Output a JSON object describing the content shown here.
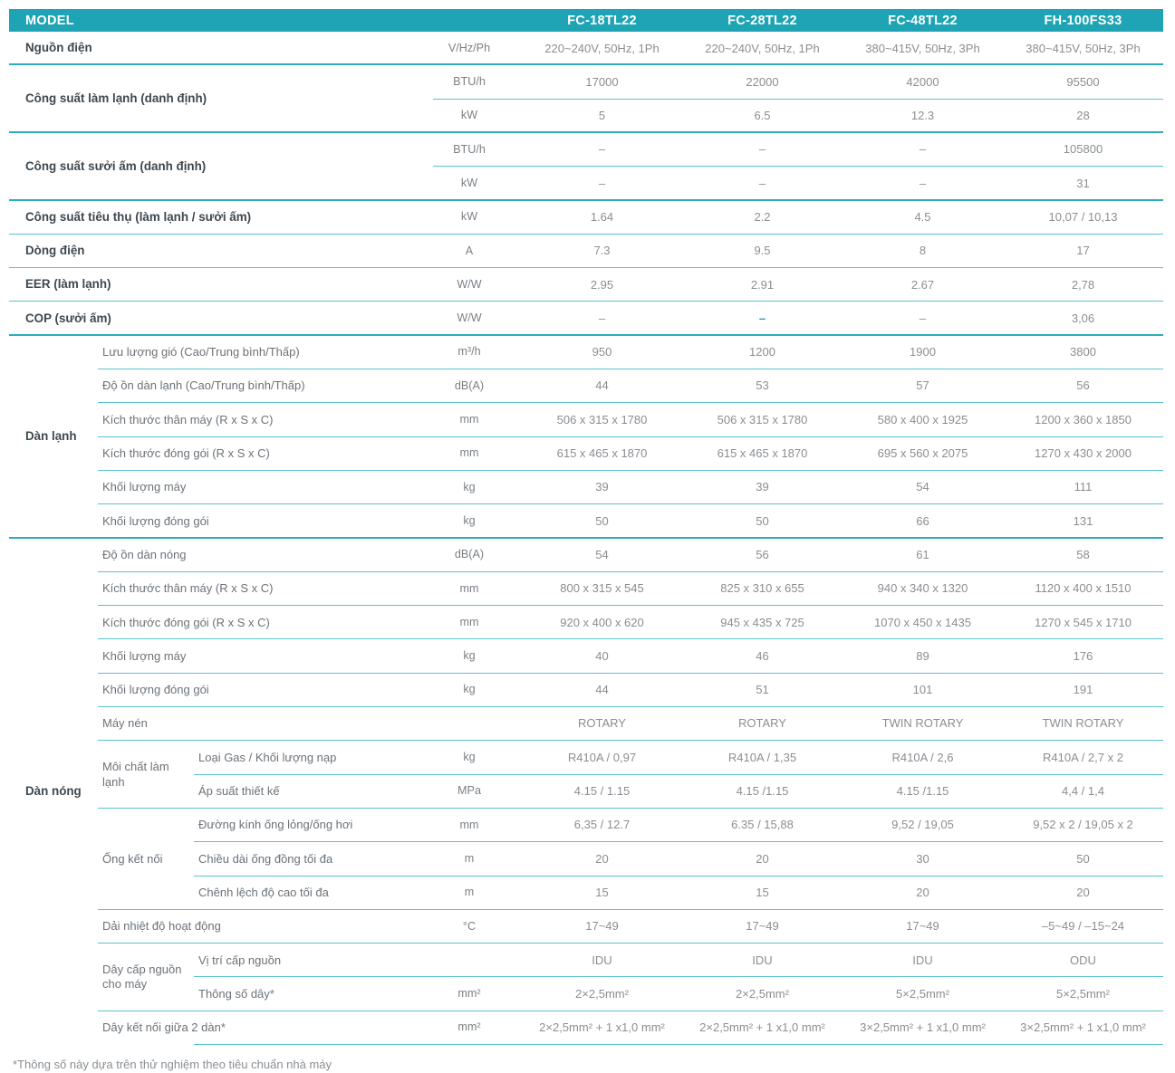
{
  "colors": {
    "header_bg": "#1EA4B5",
    "line_strong": "#2BADBF",
    "line_light": "#5BC2D0",
    "accent_dash": "#1898AB"
  },
  "header": {
    "model_label": "MODEL",
    "models": [
      "FC-18TL22",
      "FC-28TL22",
      "FC-48TL22",
      "FH-100FS33"
    ]
  },
  "rows": [
    {
      "label": "Nguồn điện",
      "level": 1,
      "unit": "V/Hz/Ph",
      "values": [
        "220~240V, 50Hz, 1Ph",
        "220~240V, 50Hz, 1Ph",
        "380~415V, 50Hz, 3Ph",
        "380~415V, 50Hz, 3Ph"
      ],
      "sep": {
        "start": "full",
        "w": "thick"
      }
    },
    {
      "label": "Công suất làm lạnh (danh định)",
      "level": 1,
      "labelSpan": 2,
      "unit": "BTU/h",
      "values": [
        "17000",
        "22000",
        "42000",
        "95500"
      ],
      "sep": {
        "start": "unit",
        "w": "thin"
      }
    },
    {
      "level": 1,
      "unit": "kW",
      "values": [
        "5",
        "6.5",
        "12.3",
        "28"
      ],
      "sep": {
        "start": "full",
        "w": "thick"
      }
    },
    {
      "label": "Công suất sưởi ấm (danh định)",
      "level": 1,
      "labelSpan": 2,
      "unit": "BTU/h",
      "values": [
        "–",
        "–",
        "–",
        "105800"
      ],
      "sep": {
        "start": "unit",
        "w": "thin"
      }
    },
    {
      "level": 1,
      "unit": "kW",
      "values": [
        "–",
        "–",
        "–",
        "31"
      ],
      "sep": {
        "start": "full",
        "w": "thick"
      }
    },
    {
      "label": "Công suất tiêu thụ (làm lạnh / sưởi ấm)",
      "level": 1,
      "unit": "kW",
      "values": [
        "1.64",
        "2.2",
        "4.5",
        "10,07 / 10,13"
      ],
      "sep": {
        "start": "full",
        "w": "thin"
      }
    },
    {
      "label": "Dòng điện",
      "level": 1,
      "unit": "A",
      "values": [
        "7.3",
        "9.5",
        "8",
        "17"
      ],
      "sep": {
        "start": "full",
        "w": "thin"
      }
    },
    {
      "label": "EER (làm lạnh)",
      "level": 1,
      "unit": "W/W",
      "values": [
        "2.95",
        "2.91",
        "2.67",
        "2,78"
      ],
      "sep": {
        "start": "full",
        "w": "thin"
      }
    },
    {
      "label": "COP (sưởi ấm)",
      "level": 1,
      "unit": "W/W",
      "values": [
        "–",
        "–",
        "–",
        "3,06"
      ],
      "tealDash": 1,
      "sep": {
        "start": "full",
        "w": "thick"
      }
    },
    {
      "group": "Dàn lạnh",
      "groupSpan": 6,
      "label": "Lưu lượng gió (Cao/Trung bình/Thấp)",
      "level": 2,
      "unit": "m³/h",
      "values": [
        "950",
        "1200",
        "1900",
        "3800"
      ],
      "sep": {
        "start": "l2",
        "w": "thin"
      }
    },
    {
      "label": "Độ ồn dàn lạnh (Cao/Trung bình/Thấp)",
      "level": 2,
      "unit": "dB(A)",
      "values": [
        "44",
        "53",
        "57",
        "56"
      ],
      "sep": {
        "start": "l2",
        "w": "thin"
      }
    },
    {
      "label": "Kích thước thân máy (R x S x C)",
      "level": 2,
      "unit": "mm",
      "values": [
        "506 x 315 x 1780",
        "506 x 315 x 1780",
        "580 x 400 x 1925",
        "1200 x 360 x 1850"
      ],
      "sep": {
        "start": "l2",
        "w": "thin"
      }
    },
    {
      "label": "Kích thước đóng gói (R x S x C)",
      "level": 2,
      "unit": "mm",
      "values": [
        "615 x 465 x 1870",
        "615 x 465 x 1870",
        "695 x 560 x 2075",
        "1270 x 430 x 2000"
      ],
      "sep": {
        "start": "l2",
        "w": "thin"
      }
    },
    {
      "label": "Khối lượng máy",
      "level": 2,
      "unit": "kg",
      "values": [
        "39",
        "39",
        "54",
        "111"
      ],
      "sep": {
        "start": "l2",
        "w": "thin"
      }
    },
    {
      "label": "Khối lượng đóng gói",
      "level": 2,
      "unit": "kg",
      "values": [
        "50",
        "50",
        "66",
        "131"
      ],
      "sep": {
        "start": "full",
        "w": "thick"
      }
    },
    {
      "group": "Dàn nóng",
      "groupSpan": 15,
      "label": "Độ ồn dàn nóng",
      "level": 2,
      "unit": "dB(A)",
      "values": [
        "54",
        "56",
        "61",
        "58"
      ],
      "sep": {
        "start": "l2",
        "w": "thin"
      }
    },
    {
      "label": "Kích thước thân máy (R x S x C)",
      "level": 2,
      "unit": "mm",
      "values": [
        "800 x 315 x 545",
        "825 x 310 x 655",
        "940 x 340 x 1320",
        "1120 x 400 x 1510"
      ],
      "sep": {
        "start": "l2",
        "w": "thin"
      }
    },
    {
      "label": "Kích thước đóng gói (R x S x C)",
      "level": 2,
      "unit": "mm",
      "values": [
        "920 x 400 x 620",
        "945 x 435 x 725",
        "1070 x 450 x 1435",
        "1270 x 545 x 1710"
      ],
      "sep": {
        "start": "l2",
        "w": "thin"
      }
    },
    {
      "label": "Khối lượng máy",
      "level": 2,
      "unit": "kg",
      "values": [
        "40",
        "46",
        "89",
        "176"
      ],
      "sep": {
        "start": "l2",
        "w": "thin"
      }
    },
    {
      "label": "Khối lượng đóng gói",
      "level": 2,
      "unit": "kg",
      "values": [
        "44",
        "51",
        "101",
        "191"
      ],
      "sep": {
        "start": "l2",
        "w": "thin"
      }
    },
    {
      "label": "Máy nén",
      "level": 2,
      "unit": "",
      "values": [
        "ROTARY",
        "ROTARY",
        "TWIN ROTARY",
        "TWIN ROTARY"
      ],
      "sep": {
        "start": "l2",
        "w": "thin"
      }
    },
    {
      "subgroup": "Môi chất làm lạnh",
      "subgroupSpan": 2,
      "label": "Loại Gas / Khối lượng nạp",
      "level": 3,
      "unit": "kg",
      "values": [
        "R410A / 0,97",
        "R410A / 1,35",
        "R410A / 2,6",
        "R410A / 2,7 x 2"
      ],
      "sep": {
        "start": "l3",
        "w": "thin"
      }
    },
    {
      "label": "Áp suất thiết kế",
      "level": 3,
      "unit": "MPa",
      "values": [
        "4.15 / 1.15",
        "4.15 /1.15",
        "4.15 /1.15",
        "4,4 / 1,4"
      ],
      "sep": {
        "start": "l2",
        "w": "thin"
      }
    },
    {
      "subgroup": "Ống kết nối",
      "subgroupSpan": 3,
      "label": "Đường kính ống lỏng/ống hơi",
      "level": 3,
      "unit": "mm",
      "values": [
        "6,35 / 12.7",
        "6.35 / 15,88",
        "9,52 / 19,05",
        "9,52 x 2 / 19,05 x 2"
      ],
      "sep": {
        "start": "l3",
        "w": "thin"
      }
    },
    {
      "label": "Chiều dài ống đồng tối đa",
      "level": 3,
      "unit": "m",
      "values": [
        "20",
        "20",
        "30",
        "50"
      ],
      "sep": {
        "start": "l3",
        "w": "thin"
      }
    },
    {
      "label": "Chênh lệch độ cao tối đa",
      "level": 3,
      "unit": "m",
      "values": [
        "15",
        "15",
        "20",
        "20"
      ],
      "sep": {
        "start": "l2",
        "w": "thin"
      }
    },
    {
      "label": "Dải nhiệt độ hoạt động",
      "level": 2,
      "unit": "°C",
      "values": [
        "17~49",
        "17~49",
        "17~49",
        "–5~49 / –15~24"
      ],
      "sep": {
        "start": "l2",
        "w": "thin"
      }
    },
    {
      "subgroup": "Dây cấp nguồn cho máy",
      "subgroupSpan": 2,
      "label": "Vị trí cấp nguồn",
      "level": 3,
      "unit": "",
      "values": [
        "IDU",
        "IDU",
        "IDU",
        "ODU"
      ],
      "sep": {
        "start": "l3",
        "w": "thin"
      }
    },
    {
      "label": "Thông số dây*",
      "level": 3,
      "unit": "mm²",
      "values": [
        "2×2,5mm²",
        "2×2,5mm²",
        "5×2,5mm²",
        "5×2,5mm²"
      ],
      "sep": {
        "start": "l2",
        "w": "thin"
      }
    },
    {
      "label": "Dây kết nối giữa 2 dàn*",
      "level": 2,
      "unit": "mm²",
      "values": [
        "2×2,5mm² + 1 x1,0 mm²",
        "2×2,5mm² + 1 x1,0 mm²",
        "3×2,5mm² + 1 x1,0 mm²",
        "3×2,5mm² + 1 x1,0 mm²"
      ],
      "sep": {
        "start": "l3",
        "w": "thin"
      }
    }
  ],
  "footnote": "*Thông số này dựa trên thử nghiệm theo tiêu chuẩn nhà máy"
}
